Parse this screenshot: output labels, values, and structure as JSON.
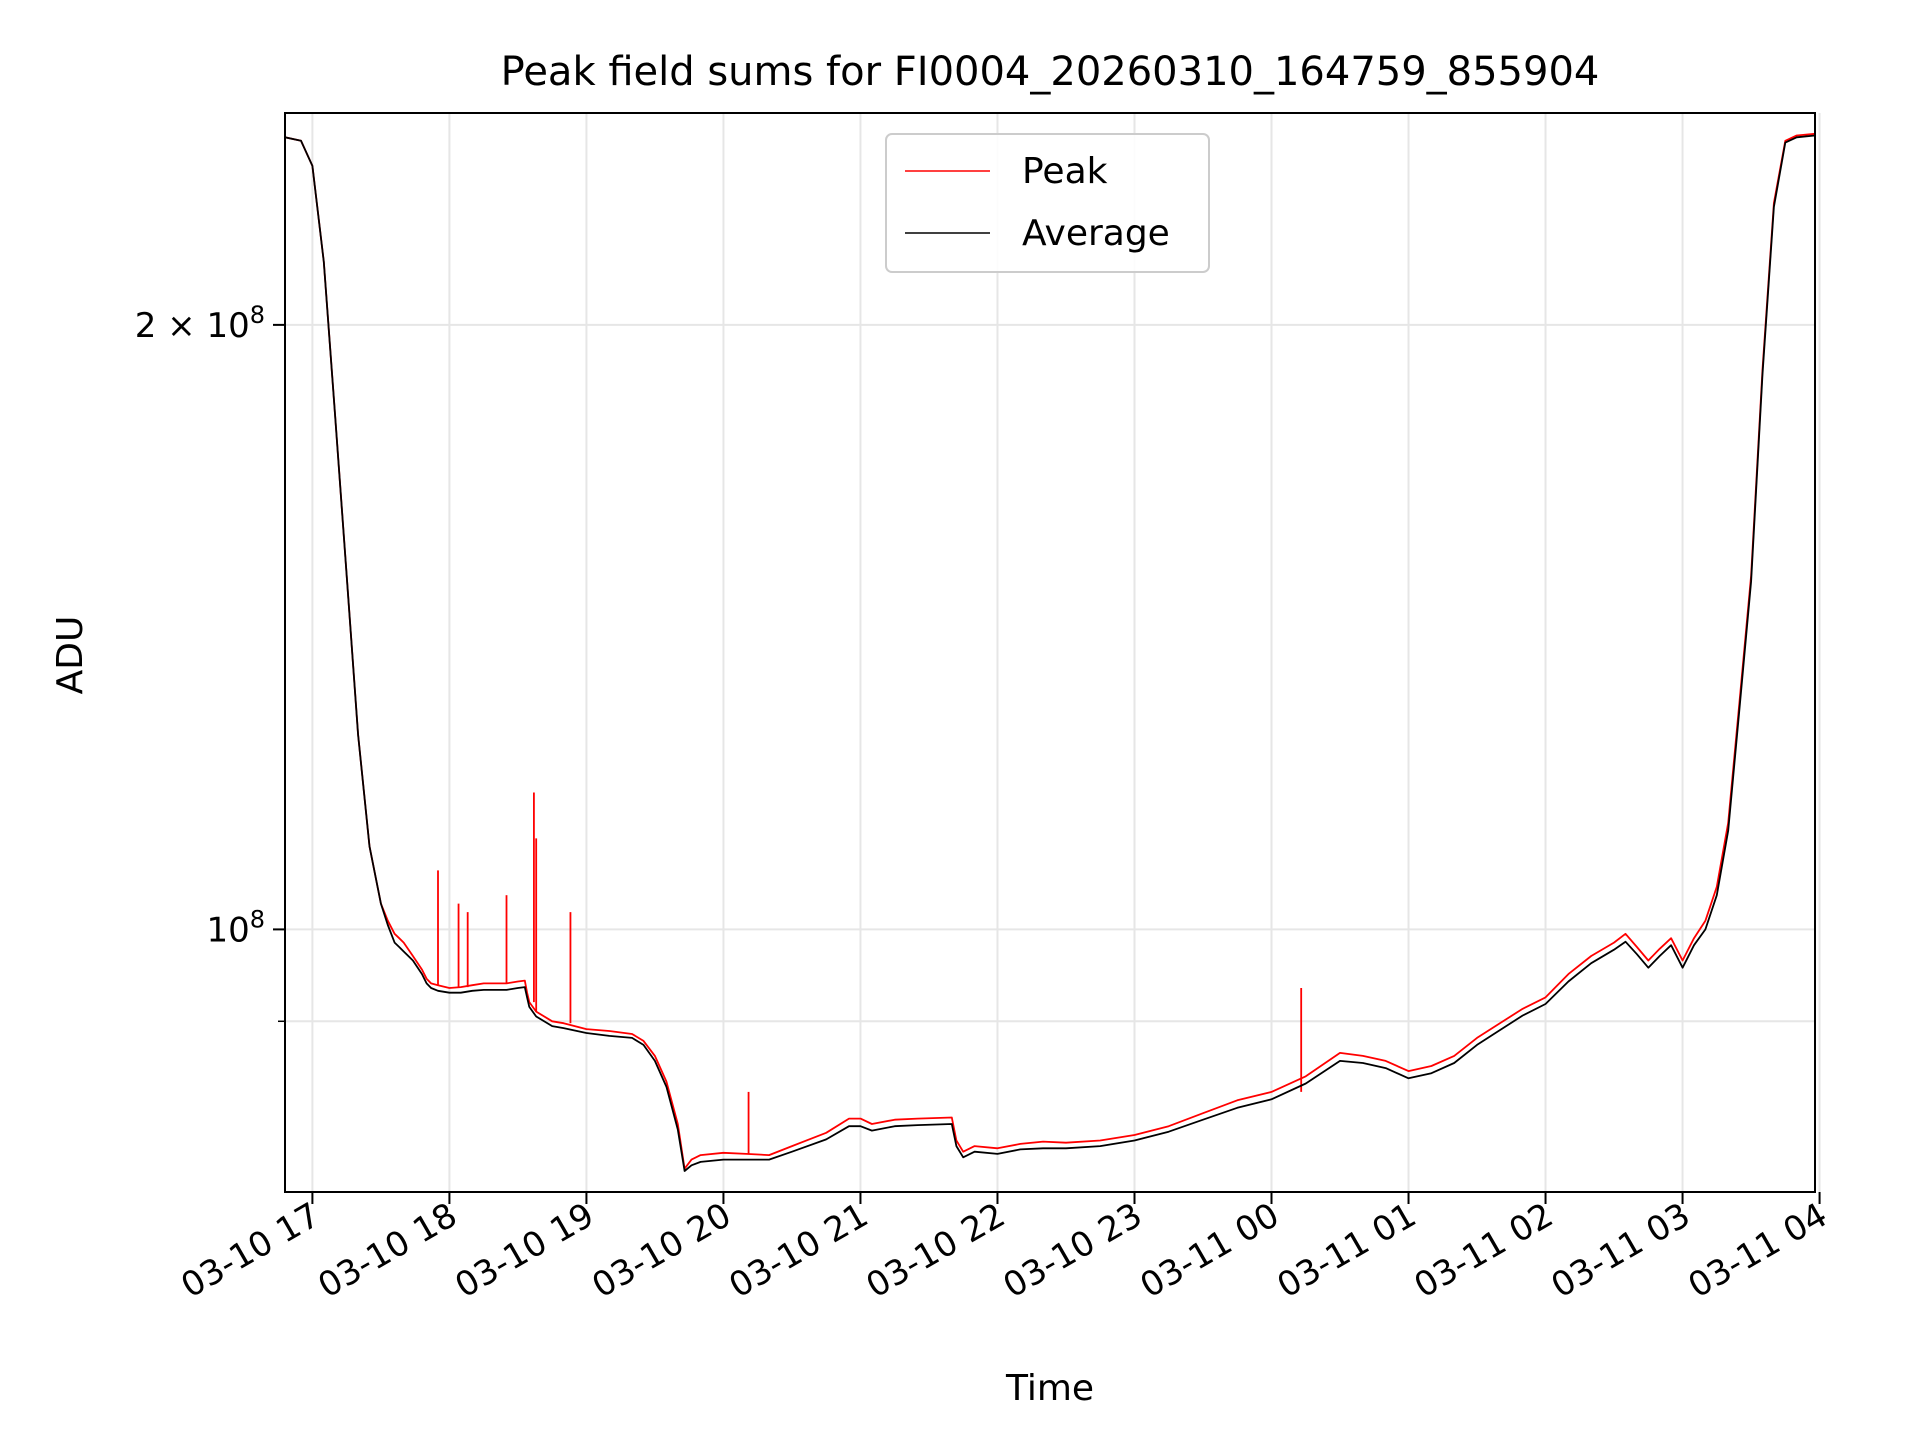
{
  "chart_data": {
    "type": "line",
    "title": "Peak field sums for FI0004_20260310_164759_855904",
    "xlabel": "Time",
    "ylabel": "ADU",
    "y_scale": "log",
    "ylim": [
      74000000,
      255000000
    ],
    "xlim": [
      "2026-03-10 16:48",
      "2026-03-11 03:58"
    ],
    "grid": true,
    "legend_position": "upper center",
    "x_ticks": [
      {
        "t": "2026-03-10 17:00",
        "label": "03-10 17"
      },
      {
        "t": "2026-03-10 18:00",
        "label": "03-10 18"
      },
      {
        "t": "2026-03-10 19:00",
        "label": "03-10 19"
      },
      {
        "t": "2026-03-10 20:00",
        "label": "03-10 20"
      },
      {
        "t": "2026-03-10 21:00",
        "label": "03-10 21"
      },
      {
        "t": "2026-03-10 22:00",
        "label": "03-10 22"
      },
      {
        "t": "2026-03-10 23:00",
        "label": "03-10 23"
      },
      {
        "t": "2026-03-11 00:00",
        "label": "03-11 00"
      },
      {
        "t": "2026-03-11 01:00",
        "label": "03-11 01"
      },
      {
        "t": "2026-03-11 02:00",
        "label": "03-11 02"
      },
      {
        "t": "2026-03-11 03:00",
        "label": "03-11 03"
      },
      {
        "t": "2026-03-11 04:00",
        "label": "03-11 04"
      }
    ],
    "y_ticks": [
      {
        "value": 100000000,
        "base": "10",
        "exp": "8"
      },
      {
        "value": 200000000,
        "base": "2 × 10",
        "exp": "8"
      }
    ],
    "y_minor_ticks": [
      90000000
    ],
    "series": [
      {
        "name": "Peak",
        "color": "#ff0000",
        "x": [
          "2026-03-10 16:48",
          "2026-03-10 16:55",
          "2026-03-10 17:00",
          "2026-03-10 17:05",
          "2026-03-10 17:10",
          "2026-03-10 17:15",
          "2026-03-10 17:20",
          "2026-03-10 17:25",
          "2026-03-10 17:30",
          "2026-03-10 17:33",
          "2026-03-10 17:36",
          "2026-03-10 17:38",
          "2026-03-10 17:40",
          "2026-03-10 17:44",
          "2026-03-10 17:48",
          "2026-03-10 17:50",
          "2026-03-10 17:52",
          "2026-03-10 17:55",
          "2026-03-10 18:00",
          "2026-03-10 18:05",
          "2026-03-10 18:10",
          "2026-03-10 18:15",
          "2026-03-10 18:20",
          "2026-03-10 18:25",
          "2026-03-10 18:30",
          "2026-03-10 18:33",
          "2026-03-10 18:34",
          "2026-03-10 18:35",
          "2026-03-10 18:38",
          "2026-03-10 18:45",
          "2026-03-10 18:50",
          "2026-03-10 19:00",
          "2026-03-10 19:10",
          "2026-03-10 19:20",
          "2026-03-10 19:25",
          "2026-03-10 19:30",
          "2026-03-10 19:35",
          "2026-03-10 19:40",
          "2026-03-10 19:43",
          "2026-03-10 19:46",
          "2026-03-10 19:50",
          "2026-03-10 20:00",
          "2026-03-10 20:10",
          "2026-03-10 20:20",
          "2026-03-10 20:30",
          "2026-03-10 20:45",
          "2026-03-10 20:55",
          "2026-03-10 21:00",
          "2026-03-10 21:05",
          "2026-03-10 21:15",
          "2026-03-10 21:25",
          "2026-03-10 21:40",
          "2026-03-10 21:42",
          "2026-03-10 21:45",
          "2026-03-10 21:50",
          "2026-03-10 22:00",
          "2026-03-10 22:10",
          "2026-03-10 22:20",
          "2026-03-10 22:30",
          "2026-03-10 22:45",
          "2026-03-10 23:00",
          "2026-03-10 23:15",
          "2026-03-10 23:30",
          "2026-03-10 23:45",
          "2026-03-11 00:00",
          "2026-03-11 00:15",
          "2026-03-11 00:30",
          "2026-03-11 00:40",
          "2026-03-11 00:50",
          "2026-03-11 01:00",
          "2026-03-11 01:10",
          "2026-03-11 01:20",
          "2026-03-11 01:30",
          "2026-03-11 01:40",
          "2026-03-11 01:50",
          "2026-03-11 02:00",
          "2026-03-11 02:10",
          "2026-03-11 02:20",
          "2026-03-11 02:30",
          "2026-03-11 02:35",
          "2026-03-11 02:40",
          "2026-03-11 02:45",
          "2026-03-11 02:50",
          "2026-03-11 02:55",
          "2026-03-11 03:00",
          "2026-03-11 03:05",
          "2026-03-11 03:10",
          "2026-03-11 03:15",
          "2026-03-11 03:20",
          "2026-03-11 03:25",
          "2026-03-11 03:30",
          "2026-03-11 03:35",
          "2026-03-11 03:40",
          "2026-03-11 03:45",
          "2026-03-11 03:50",
          "2026-03-11 03:58"
        ],
        "y": [
          248000000,
          247000000,
          240000000,
          215000000,
          180000000,
          150000000,
          125000000,
          110000000,
          103000000,
          101000000,
          99500000,
          99000000,
          98500000,
          97000000,
          95500000,
          94500000,
          94000000,
          93800000,
          93500000,
          93600000,
          93800000,
          94000000,
          94000000,
          94000000,
          94200000,
          94300000,
          93000000,
          92000000,
          91000000,
          90000000,
          89800000,
          89200000,
          89000000,
          88700000,
          88000000,
          86500000,
          84000000,
          80000000,
          76000000,
          76800000,
          77200000,
          77400000,
          77300000,
          77200000,
          78000000,
          79200000,
          80500000,
          80500000,
          80000000,
          80400000,
          80500000,
          80600000,
          78500000,
          77500000,
          78000000,
          77800000,
          78200000,
          78400000,
          78300000,
          78500000,
          79000000,
          79800000,
          81000000,
          82200000,
          83000000,
          84500000,
          86800000,
          86500000,
          86000000,
          85000000,
          85500000,
          86500000,
          88300000,
          89800000,
          91300000,
          92500000,
          95000000,
          97000000,
          98500000,
          99500000,
          98000000,
          96500000,
          97800000,
          99000000,
          96500000,
          99000000,
          101000000,
          105000000,
          113000000,
          130000000,
          150000000,
          190000000,
          230000000,
          247000000,
          248500000,
          249000000
        ],
        "spikes": [
          {
            "t": "2026-03-10 17:55",
            "value": 107000000
          },
          {
            "t": "2026-03-10 18:04",
            "value": 103000000
          },
          {
            "t": "2026-03-10 18:08",
            "value": 102000000
          },
          {
            "t": "2026-03-10 18:25",
            "value": 104000000
          },
          {
            "t": "2026-03-10 18:37",
            "value": 117000000
          },
          {
            "t": "2026-03-10 18:38",
            "value": 111000000
          },
          {
            "t": "2026-03-10 18:53",
            "value": 102000000
          },
          {
            "t": "2026-03-10 20:11",
            "value": 83000000
          },
          {
            "t": "2026-03-11 00:13",
            "value": 93500000
          }
        ]
      },
      {
        "name": "Average",
        "color": "#000000",
        "x": [
          "2026-03-10 16:48",
          "2026-03-10 16:55",
          "2026-03-10 17:00",
          "2026-03-10 17:05",
          "2026-03-10 17:10",
          "2026-03-10 17:15",
          "2026-03-10 17:20",
          "2026-03-10 17:25",
          "2026-03-10 17:30",
          "2026-03-10 17:33",
          "2026-03-10 17:36",
          "2026-03-10 17:38",
          "2026-03-10 17:40",
          "2026-03-10 17:44",
          "2026-03-10 17:48",
          "2026-03-10 17:50",
          "2026-03-10 17:52",
          "2026-03-10 17:55",
          "2026-03-10 18:00",
          "2026-03-10 18:05",
          "2026-03-10 18:10",
          "2026-03-10 18:15",
          "2026-03-10 18:20",
          "2026-03-10 18:25",
          "2026-03-10 18:30",
          "2026-03-10 18:33",
          "2026-03-10 18:34",
          "2026-03-10 18:35",
          "2026-03-10 18:38",
          "2026-03-10 18:45",
          "2026-03-10 18:50",
          "2026-03-10 19:00",
          "2026-03-10 19:10",
          "2026-03-10 19:20",
          "2026-03-10 19:25",
          "2026-03-10 19:30",
          "2026-03-10 19:35",
          "2026-03-10 19:40",
          "2026-03-10 19:43",
          "2026-03-10 19:46",
          "2026-03-10 19:50",
          "2026-03-10 20:00",
          "2026-03-10 20:10",
          "2026-03-10 20:20",
          "2026-03-10 20:30",
          "2026-03-10 20:45",
          "2026-03-10 20:55",
          "2026-03-10 21:00",
          "2026-03-10 21:05",
          "2026-03-10 21:15",
          "2026-03-10 21:25",
          "2026-03-10 21:40",
          "2026-03-10 21:42",
          "2026-03-10 21:45",
          "2026-03-10 21:50",
          "2026-03-10 22:00",
          "2026-03-10 22:10",
          "2026-03-10 22:20",
          "2026-03-10 22:30",
          "2026-03-10 22:45",
          "2026-03-10 23:00",
          "2026-03-10 23:15",
          "2026-03-10 23:30",
          "2026-03-10 23:45",
          "2026-03-11 00:00",
          "2026-03-11 00:15",
          "2026-03-11 00:30",
          "2026-03-11 00:40",
          "2026-03-11 00:50",
          "2026-03-11 01:00",
          "2026-03-11 01:10",
          "2026-03-11 01:20",
          "2026-03-11 01:30",
          "2026-03-11 01:40",
          "2026-03-11 01:50",
          "2026-03-11 02:00",
          "2026-03-11 02:10",
          "2026-03-11 02:20",
          "2026-03-11 02:30",
          "2026-03-11 02:35",
          "2026-03-11 02:40",
          "2026-03-11 02:45",
          "2026-03-11 02:50",
          "2026-03-11 02:55",
          "2026-03-11 03:00",
          "2026-03-11 03:05",
          "2026-03-11 03:10",
          "2026-03-11 03:15",
          "2026-03-11 03:20",
          "2026-03-11 03:25",
          "2026-03-11 03:30",
          "2026-03-11 03:35",
          "2026-03-11 03:40",
          "2026-03-11 03:45",
          "2026-03-11 03:50",
          "2026-03-11 03:58"
        ],
        "y": [
          248000000,
          247000000,
          240000000,
          215000000,
          180000000,
          150000000,
          125000000,
          110000000,
          103000000,
          100500000,
          98500000,
          98000000,
          97500000,
          96500000,
          95000000,
          94000000,
          93500000,
          93200000,
          93000000,
          93000000,
          93200000,
          93300000,
          93300000,
          93300000,
          93500000,
          93600000,
          92500000,
          91500000,
          90500000,
          89500000,
          89300000,
          88800000,
          88500000,
          88300000,
          87600000,
          86000000,
          83500000,
          79500000,
          75800000,
          76300000,
          76600000,
          76800000,
          76800000,
          76800000,
          77500000,
          78600000,
          79800000,
          79800000,
          79400000,
          79800000,
          79900000,
          80000000,
          78000000,
          77000000,
          77500000,
          77300000,
          77700000,
          77800000,
          77800000,
          78000000,
          78500000,
          79300000,
          80400000,
          81500000,
          82300000,
          83800000,
          86000000,
          85800000,
          85300000,
          84300000,
          84800000,
          85800000,
          87600000,
          89100000,
          90600000,
          91800000,
          94200000,
          96200000,
          97700000,
          98600000,
          97200000,
          95700000,
          97000000,
          98200000,
          95700000,
          98200000,
          100000000,
          104000000,
          112000000,
          129000000,
          149000000,
          189000000,
          229000000,
          246500000,
          248000000,
          248500000
        ]
      }
    ]
  }
}
